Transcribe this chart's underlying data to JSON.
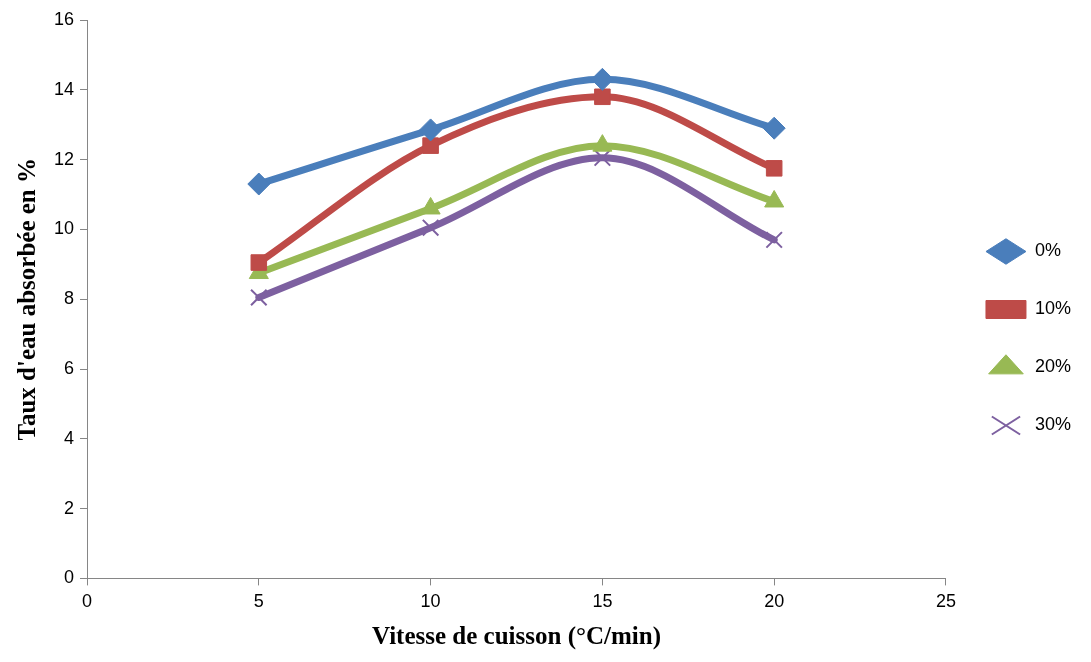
{
  "chart_data": {
    "type": "line",
    "xlabel": "Vitesse de cuisson (°C/min)",
    "ylabel": "Taux d'eau absorbée en %",
    "x": [
      5,
      10,
      15,
      20
    ],
    "series": [
      {
        "name": "0%",
        "color": "#4a7ebb",
        "marker": "diamond",
        "values": [
          11.3,
          12.85,
          14.3,
          12.9
        ]
      },
      {
        "name": "10%",
        "color": "#be4b48",
        "marker": "square",
        "values": [
          9.05,
          12.4,
          13.8,
          11.75
        ]
      },
      {
        "name": "20%",
        "color": "#98b954",
        "marker": "triangle",
        "values": [
          8.75,
          10.6,
          12.4,
          10.8
        ]
      },
      {
        "name": "30%",
        "color": "#7d60a0",
        "marker": "cross",
        "values": [
          8.05,
          10.05,
          12.05,
          9.7
        ]
      }
    ],
    "xlim": [
      0,
      25
    ],
    "xticks": [
      0,
      5,
      10,
      15,
      20,
      25
    ],
    "ylim": [
      0,
      16
    ],
    "yticks": [
      0,
      2,
      4,
      6,
      8,
      10,
      12,
      14,
      16
    ],
    "grid": false,
    "legend": "right"
  }
}
